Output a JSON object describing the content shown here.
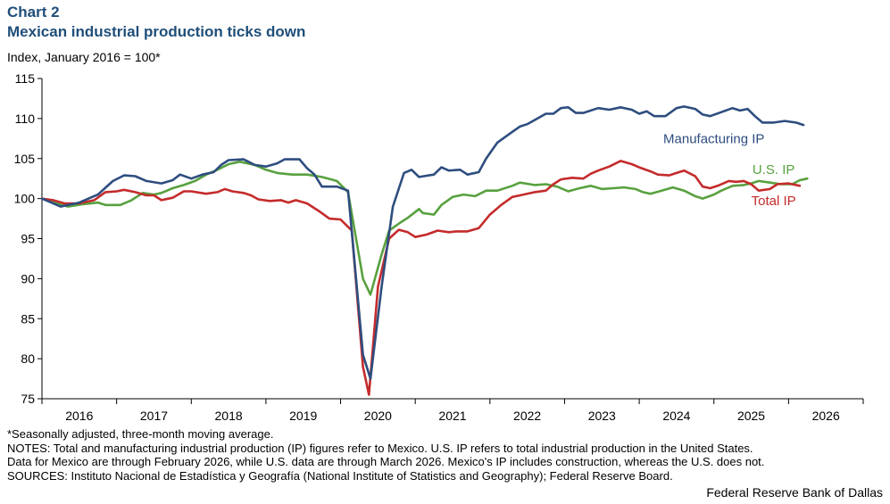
{
  "header": {
    "label": "Chart 2",
    "title": "Mexican industrial production ticks down",
    "y_unit": "Index, January 2016 = 100*"
  },
  "chart_data": {
    "type": "line",
    "title": "Mexican industrial production ticks down",
    "ylabel": "Index, January 2016 = 100*",
    "ylim": [
      75,
      115
    ],
    "yticks": [
      75,
      80,
      85,
      90,
      95,
      100,
      105,
      110,
      115
    ],
    "xlim": [
      2016.0,
      2027.0
    ],
    "x_tick_labels": [
      "2016",
      "2017",
      "2018",
      "2019",
      "2020",
      "2021",
      "2022",
      "2023",
      "2024",
      "2025",
      "2026"
    ],
    "grid": false,
    "series": [
      {
        "name": "Manufacturing IP",
        "color": "#2e4d7f",
        "points": [
          [
            2016.0,
            100.0
          ],
          [
            2016.25,
            99.0
          ],
          [
            2016.5,
            99.5
          ],
          [
            2016.75,
            100.5
          ],
          [
            2016.95,
            102.2
          ],
          [
            2017.1,
            102.9
          ],
          [
            2017.25,
            102.8
          ],
          [
            2017.4,
            102.2
          ],
          [
            2017.6,
            101.9
          ],
          [
            2017.75,
            102.3
          ],
          [
            2017.85,
            103.0
          ],
          [
            2018.0,
            102.5
          ],
          [
            2018.15,
            103.0
          ],
          [
            2018.3,
            103.3
          ],
          [
            2018.4,
            104.2
          ],
          [
            2018.5,
            104.8
          ],
          [
            2018.7,
            104.9
          ],
          [
            2018.85,
            104.2
          ],
          [
            2019.0,
            104.0
          ],
          [
            2019.15,
            104.4
          ],
          [
            2019.25,
            104.9
          ],
          [
            2019.45,
            104.9
          ],
          [
            2019.55,
            103.8
          ],
          [
            2019.65,
            103.0
          ],
          [
            2019.75,
            101.5
          ],
          [
            2019.95,
            101.5
          ],
          [
            2020.1,
            101.0
          ],
          [
            2020.3,
            80.5
          ],
          [
            2020.4,
            77.5
          ],
          [
            2020.55,
            89.0
          ],
          [
            2020.7,
            99.0
          ],
          [
            2020.85,
            103.2
          ],
          [
            2020.95,
            103.6
          ],
          [
            2021.05,
            102.7
          ],
          [
            2021.25,
            103.0
          ],
          [
            2021.35,
            103.9
          ],
          [
            2021.45,
            103.5
          ],
          [
            2021.6,
            103.6
          ],
          [
            2021.7,
            103.0
          ],
          [
            2021.85,
            103.3
          ],
          [
            2021.95,
            105.0
          ],
          [
            2022.1,
            107.0
          ],
          [
            2022.25,
            108.0
          ],
          [
            2022.4,
            109.0
          ],
          [
            2022.5,
            109.3
          ],
          [
            2022.75,
            110.6
          ],
          [
            2022.85,
            110.6
          ],
          [
            2022.95,
            111.3
          ],
          [
            2023.05,
            111.4
          ],
          [
            2023.15,
            110.7
          ],
          [
            2023.25,
            110.7
          ],
          [
            2023.45,
            111.3
          ],
          [
            2023.6,
            111.1
          ],
          [
            2023.75,
            111.4
          ],
          [
            2023.9,
            111.1
          ],
          [
            2024.0,
            110.6
          ],
          [
            2024.1,
            110.9
          ],
          [
            2024.2,
            110.3
          ],
          [
            2024.35,
            110.3
          ],
          [
            2024.5,
            111.3
          ],
          [
            2024.6,
            111.5
          ],
          [
            2024.75,
            111.2
          ],
          [
            2024.85,
            110.5
          ],
          [
            2024.95,
            110.3
          ],
          [
            2025.1,
            110.8
          ],
          [
            2025.25,
            111.3
          ],
          [
            2025.35,
            111.0
          ],
          [
            2025.45,
            111.2
          ],
          [
            2025.55,
            110.3
          ],
          [
            2025.65,
            109.5
          ],
          [
            2025.8,
            109.5
          ],
          [
            2025.95,
            109.7
          ],
          [
            2026.1,
            109.5
          ],
          [
            2026.2,
            109.2
          ]
        ]
      },
      {
        "name": "U.S. IP",
        "color": "#58a13f",
        "points": [
          [
            2016.0,
            100.0
          ],
          [
            2016.15,
            99.5
          ],
          [
            2016.35,
            99.0
          ],
          [
            2016.55,
            99.3
          ],
          [
            2016.75,
            99.5
          ],
          [
            2016.85,
            99.2
          ],
          [
            2017.05,
            99.2
          ],
          [
            2017.2,
            99.8
          ],
          [
            2017.35,
            100.7
          ],
          [
            2017.5,
            100.5
          ],
          [
            2017.6,
            100.7
          ],
          [
            2017.75,
            101.3
          ],
          [
            2017.9,
            101.7
          ],
          [
            2018.05,
            102.2
          ],
          [
            2018.2,
            103.0
          ],
          [
            2018.35,
            103.6
          ],
          [
            2018.5,
            104.3
          ],
          [
            2018.65,
            104.6
          ],
          [
            2018.85,
            104.2
          ],
          [
            2019.0,
            103.6
          ],
          [
            2019.15,
            103.2
          ],
          [
            2019.35,
            103.0
          ],
          [
            2019.55,
            103.0
          ],
          [
            2019.75,
            102.7
          ],
          [
            2019.95,
            102.2
          ],
          [
            2020.1,
            100.8
          ],
          [
            2020.3,
            90.0
          ],
          [
            2020.4,
            88.0
          ],
          [
            2020.55,
            93.0
          ],
          [
            2020.65,
            96.0
          ],
          [
            2020.8,
            97.0
          ],
          [
            2020.9,
            97.6
          ],
          [
            2021.05,
            98.7
          ],
          [
            2021.1,
            98.2
          ],
          [
            2021.25,
            98.0
          ],
          [
            2021.35,
            99.2
          ],
          [
            2021.5,
            100.2
          ],
          [
            2021.65,
            100.5
          ],
          [
            2021.8,
            100.3
          ],
          [
            2021.95,
            101.0
          ],
          [
            2022.1,
            101.0
          ],
          [
            2022.3,
            101.6
          ],
          [
            2022.4,
            102.0
          ],
          [
            2022.6,
            101.7
          ],
          [
            2022.75,
            101.8
          ],
          [
            2022.9,
            101.5
          ],
          [
            2023.05,
            100.9
          ],
          [
            2023.2,
            101.3
          ],
          [
            2023.35,
            101.6
          ],
          [
            2023.5,
            101.2
          ],
          [
            2023.65,
            101.3
          ],
          [
            2023.8,
            101.4
          ],
          [
            2023.95,
            101.2
          ],
          [
            2024.05,
            100.8
          ],
          [
            2024.15,
            100.6
          ],
          [
            2024.3,
            101.0
          ],
          [
            2024.45,
            101.4
          ],
          [
            2024.6,
            101.0
          ],
          [
            2024.75,
            100.3
          ],
          [
            2024.85,
            100.0
          ],
          [
            2025.0,
            100.5
          ],
          [
            2025.1,
            101.0
          ],
          [
            2025.25,
            101.6
          ],
          [
            2025.4,
            101.7
          ],
          [
            2025.5,
            101.9
          ],
          [
            2025.6,
            102.2
          ],
          [
            2025.75,
            102.0
          ],
          [
            2025.9,
            101.8
          ],
          [
            2026.05,
            101.8
          ],
          [
            2026.15,
            102.3
          ],
          [
            2026.25,
            102.5
          ]
        ]
      },
      {
        "name": "Total IP",
        "color": "#c42b2b",
        "points": [
          [
            2016.0,
            100.0
          ],
          [
            2016.15,
            99.8
          ],
          [
            2016.3,
            99.4
          ],
          [
            2016.5,
            99.4
          ],
          [
            2016.7,
            99.8
          ],
          [
            2016.85,
            100.8
          ],
          [
            2017.0,
            100.9
          ],
          [
            2017.1,
            101.1
          ],
          [
            2017.25,
            100.8
          ],
          [
            2017.4,
            100.4
          ],
          [
            2017.5,
            100.4
          ],
          [
            2017.6,
            99.8
          ],
          [
            2017.75,
            100.1
          ],
          [
            2017.9,
            100.9
          ],
          [
            2018.0,
            100.9
          ],
          [
            2018.2,
            100.6
          ],
          [
            2018.35,
            100.8
          ],
          [
            2018.45,
            101.2
          ],
          [
            2018.55,
            100.9
          ],
          [
            2018.7,
            100.7
          ],
          [
            2018.8,
            100.4
          ],
          [
            2018.9,
            99.9
          ],
          [
            2019.05,
            99.7
          ],
          [
            2019.2,
            99.8
          ],
          [
            2019.3,
            99.5
          ],
          [
            2019.4,
            99.8
          ],
          [
            2019.55,
            99.4
          ],
          [
            2019.7,
            98.5
          ],
          [
            2019.85,
            97.5
          ],
          [
            2020.0,
            97.4
          ],
          [
            2020.15,
            96.0
          ],
          [
            2020.3,
            79.0
          ],
          [
            2020.38,
            75.5
          ],
          [
            2020.5,
            89.0
          ],
          [
            2020.65,
            95.0
          ],
          [
            2020.78,
            96.1
          ],
          [
            2020.9,
            95.8
          ],
          [
            2021.0,
            95.2
          ],
          [
            2021.15,
            95.5
          ],
          [
            2021.3,
            96.0
          ],
          [
            2021.45,
            95.8
          ],
          [
            2021.55,
            95.9
          ],
          [
            2021.7,
            95.9
          ],
          [
            2021.85,
            96.3
          ],
          [
            2022.0,
            98.0
          ],
          [
            2022.15,
            99.2
          ],
          [
            2022.3,
            100.2
          ],
          [
            2022.45,
            100.5
          ],
          [
            2022.6,
            100.8
          ],
          [
            2022.75,
            101.0
          ],
          [
            2022.85,
            101.8
          ],
          [
            2022.95,
            102.4
          ],
          [
            2023.1,
            102.6
          ],
          [
            2023.25,
            102.5
          ],
          [
            2023.35,
            103.1
          ],
          [
            2023.45,
            103.5
          ],
          [
            2023.6,
            104.0
          ],
          [
            2023.75,
            104.7
          ],
          [
            2023.9,
            104.3
          ],
          [
            2024.0,
            103.9
          ],
          [
            2024.15,
            103.4
          ],
          [
            2024.25,
            103.0
          ],
          [
            2024.4,
            102.9
          ],
          [
            2024.5,
            103.2
          ],
          [
            2024.6,
            103.5
          ],
          [
            2024.75,
            102.8
          ],
          [
            2024.85,
            101.5
          ],
          [
            2024.95,
            101.3
          ],
          [
            2025.05,
            101.6
          ],
          [
            2025.2,
            102.2
          ],
          [
            2025.3,
            102.1
          ],
          [
            2025.4,
            102.2
          ],
          [
            2025.5,
            101.8
          ],
          [
            2025.6,
            101.0
          ],
          [
            2025.75,
            101.2
          ],
          [
            2025.85,
            101.8
          ],
          [
            2026.0,
            101.9
          ],
          [
            2026.15,
            101.6
          ]
        ]
      }
    ]
  },
  "footnotes": {
    "asterisk_note": "*Seasonally adjusted, three-month moving average.",
    "notes_line1": "NOTES: Total and manufacturing industrial production (IP) figures refer to Mexico. U.S. IP refers to total industrial production in the United States.",
    "notes_line2": "Data for Mexico are through February 2026, while U.S. data are through March 2026. Mexico's IP includes construction, whereas the U.S. does not.",
    "sources": "SOURCES: Instituto Nacional de Estadística y Geografía (National Institute of Statistics and Geography); Federal Reserve Board.",
    "credit": "Federal Reserve Bank of Dallas"
  }
}
